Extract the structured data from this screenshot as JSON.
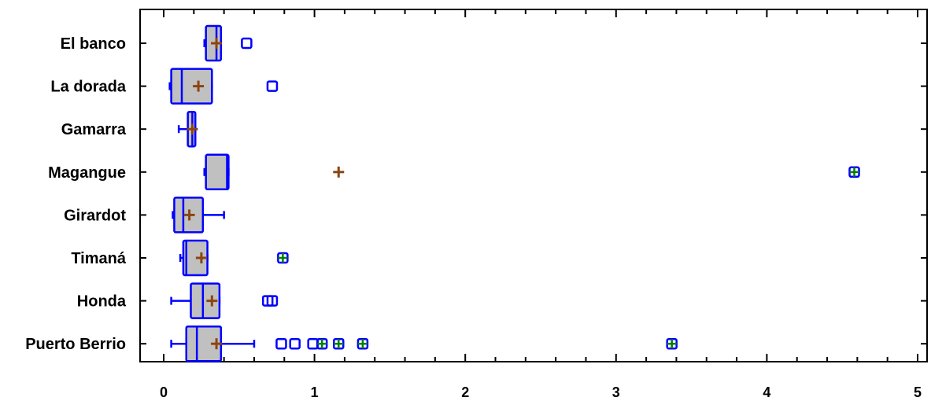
{
  "chart_data": {
    "type": "boxplot",
    "title": "",
    "xlabel": "",
    "ylabel": "",
    "xlim": [
      -0.15,
      5.05
    ],
    "x_ticks": [
      0,
      1,
      2,
      3,
      4,
      5
    ],
    "x_tick_labels": [
      "0",
      "1",
      "2",
      "3",
      "4",
      "5"
    ],
    "grid": false,
    "categories": [
      "El banco",
      "La dorada",
      "Gamarra",
      "Magangue",
      "Girardot",
      "Timaná",
      "Honda",
      "Puerto Berrio"
    ],
    "boxes": [
      {
        "name": "El banco",
        "whisker_low": 0.27,
        "q1": 0.28,
        "median": 0.35,
        "q3": 0.38,
        "whisker_high": 0.38,
        "mean": 0.35,
        "outliers": [
          0.55
        ],
        "far_outliers": []
      },
      {
        "name": "La dorada",
        "whisker_low": 0.04,
        "q1": 0.05,
        "median": 0.12,
        "q3": 0.32,
        "whisker_high": 0.32,
        "mean": 0.23,
        "outliers": [
          0.72
        ],
        "far_outliers": []
      },
      {
        "name": "Gamarra",
        "whisker_low": 0.1,
        "q1": 0.16,
        "median": 0.19,
        "q3": 0.21,
        "whisker_high": 0.21,
        "mean": 0.19,
        "outliers": [],
        "far_outliers": []
      },
      {
        "name": "Magangue",
        "whisker_low": 0.27,
        "q1": 0.28,
        "median": 0.42,
        "q3": 0.43,
        "whisker_high": 0.43,
        "mean": 1.16,
        "outliers": [],
        "far_outliers": [
          4.58
        ]
      },
      {
        "name": "Girardot",
        "whisker_low": 0.06,
        "q1": 0.07,
        "median": 0.13,
        "q3": 0.26,
        "whisker_high": 0.4,
        "mean": 0.17,
        "outliers": [],
        "far_outliers": []
      },
      {
        "name": "Timaná",
        "whisker_low": 0.11,
        "q1": 0.13,
        "median": 0.15,
        "q3": 0.29,
        "whisker_high": 0.29,
        "mean": 0.25,
        "outliers": [],
        "far_outliers": [
          0.79
        ]
      },
      {
        "name": "Honda",
        "whisker_low": 0.05,
        "q1": 0.18,
        "median": 0.26,
        "q3": 0.37,
        "whisker_high": 0.37,
        "mean": 0.32,
        "outliers": [
          0.69,
          0.72
        ],
        "far_outliers": []
      },
      {
        "name": "Puerto Berrio",
        "whisker_low": 0.05,
        "q1": 0.15,
        "median": 0.22,
        "q3": 0.38,
        "whisker_high": 0.6,
        "mean": 0.35,
        "outliers": [
          0.78,
          0.87,
          0.99
        ],
        "far_outliers": [
          1.05,
          1.16,
          1.32,
          3.37
        ]
      }
    ],
    "colors": {
      "box_fill": "#c0c0c0",
      "box_stroke": "#0000ff",
      "mean_marker": "#8b4513",
      "far_outlier_plus": "#008000",
      "axis": "#000000"
    }
  }
}
